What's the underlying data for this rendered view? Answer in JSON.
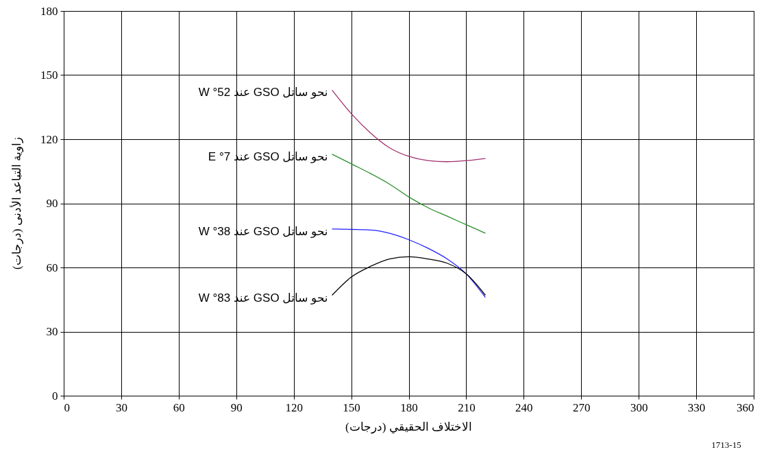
{
  "chart_data": {
    "type": "line",
    "xlabel": "الاختلاف الحقيقي (درجات)",
    "ylabel": "زاوية التباعد الأدنى (درجات)",
    "x": [
      140,
      150,
      160,
      170,
      180,
      190,
      200,
      210,
      220
    ],
    "series": [
      {
        "name": "نحو ساتل GSO عند 52° W",
        "color": "#a0306e",
        "values": [
          143,
          132,
          123,
          116,
          112,
          110,
          109.5,
          110,
          111
        ]
      },
      {
        "name": "نحو ساتل GSO عند 7° E",
        "color": "#2a8c2a",
        "values": [
          113,
          108.5,
          104,
          99,
          93,
          88,
          84,
          80,
          76
        ]
      },
      {
        "name": "نحو ساتل GSO عند 38° W",
        "color": "#2020ff",
        "values": [
          78,
          77.8,
          77.5,
          76,
          73,
          69,
          64,
          57,
          46
        ]
      },
      {
        "name": "نحو ساتل GSO عند 83° W",
        "color": "#000000",
        "values": [
          47,
          55.5,
          60.5,
          64,
          65,
          64,
          62,
          57,
          47
        ]
      }
    ],
    "xlim": [
      0,
      360
    ],
    "xticks": [
      0,
      30,
      60,
      90,
      120,
      150,
      180,
      210,
      240,
      270,
      300,
      330,
      360
    ],
    "ylim": [
      0,
      180
    ],
    "yticks": [
      0,
      30,
      60,
      90,
      120,
      150,
      180
    ],
    "grid": true,
    "marker": "none",
    "line_style": "solid",
    "annotations": [
      "1713-15"
    ]
  }
}
